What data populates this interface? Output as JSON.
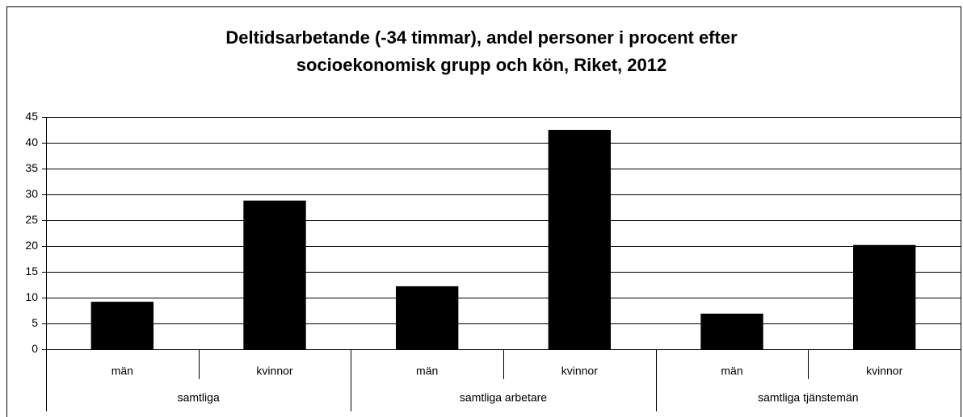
{
  "chart_data": {
    "type": "bar",
    "title": "Deltidsarbetande (-34 timmar), andel personer i procent efter socioekonomisk grupp och kön, Riket, 2012",
    "categories": [
      "män",
      "kvinnor",
      "män",
      "kvinnor",
      "män",
      "kvinnor"
    ],
    "groups": [
      "samtliga",
      "samtliga arbetare",
      "samtliga tjänstemän"
    ],
    "values": [
      9.2,
      28.8,
      12.2,
      42.5,
      6.9,
      20.2
    ],
    "color": "#000000",
    "ylim": [
      0,
      45
    ],
    "yticks": [
      0,
      5,
      10,
      15,
      20,
      25,
      30,
      35,
      40,
      45
    ],
    "grid": true
  }
}
